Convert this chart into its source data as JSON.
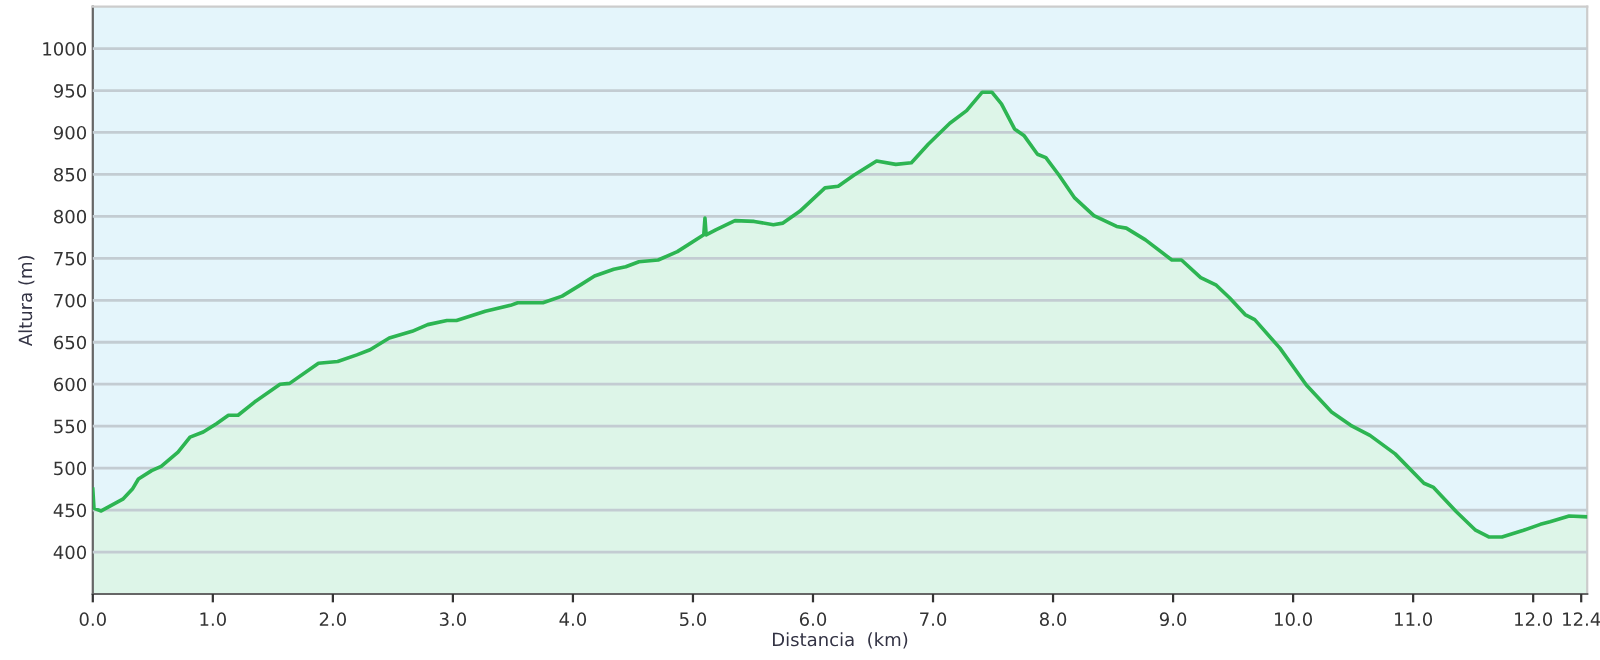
{
  "chart_data": {
    "type": "area",
    "xlabel": "Distancia  (km)",
    "ylabel": "Altura (m)",
    "x": [
      0,
      0.01,
      0.07,
      0.25,
      0.33,
      0.38,
      0.49,
      0.57,
      0.71,
      0.81,
      0.92,
      1.03,
      1.13,
      1.21,
      1.35,
      1.56,
      1.64,
      1.88,
      2.04,
      2.2,
      2.31,
      2.47,
      2.66,
      2.79,
      2.95,
      3.03,
      3.27,
      3.48,
      3.54,
      3.75,
      3.91,
      4.07,
      4.18,
      4.34,
      4.44,
      4.55,
      4.71,
      4.87,
      5.09,
      5.1,
      5.11,
      5.19,
      5.35,
      5.51,
      5.67,
      5.75,
      5.89,
      6.1,
      6.21,
      6.34,
      6.53,
      6.69,
      6.82,
      6.96,
      7.14,
      7.28,
      7.41,
      7.49,
      7.57,
      7.68,
      7.76,
      7.87,
      7.94,
      8.05,
      8.18,
      8.34,
      8.53,
      8.61,
      8.77,
      8.99,
      9.07,
      9.23,
      9.36,
      9.47,
      9.6,
      9.68,
      9.89,
      10.11,
      10.32,
      10.48,
      10.64,
      10.85,
      11.09,
      11.17,
      11.36,
      11.52,
      11.63,
      11.74,
      11.92,
      12.06,
      12.14,
      12.3,
      12.45
    ],
    "series": [
      {
        "color": "#2db552",
        "values": [
          475,
          452,
          449,
          463,
          475,
          487,
          497,
          502,
          519,
          537,
          543,
          553,
          563,
          563,
          579,
          600,
          601,
          625,
          627,
          635,
          641,
          655,
          663,
          671,
          676,
          676,
          687,
          694,
          697,
          697,
          705,
          719,
          729,
          737,
          740,
          746,
          748,
          758,
          778,
          798,
          778,
          784,
          795,
          794,
          790,
          792,
          806,
          834,
          836,
          849,
          866,
          862,
          864,
          886,
          911,
          926,
          948,
          948,
          934,
          904,
          896,
          874,
          870,
          849,
          822,
          801,
          788,
          786,
          772,
          748,
          748,
          727,
          718,
          703,
          683,
          677,
          643,
          599,
          567,
          551,
          539,
          517,
          482,
          477,
          448,
          426,
          418,
          418,
          426,
          433,
          436,
          443,
          442
        ]
      }
    ],
    "xlim": [
      0,
      12.45
    ],
    "ylim": [
      350,
      1050
    ],
    "xticks": [
      {
        "value": 0,
        "label": "0.0"
      },
      {
        "value": 1,
        "label": "1.0"
      },
      {
        "value": 2,
        "label": "2.0"
      },
      {
        "value": 3,
        "label": "3.0"
      },
      {
        "value": 4,
        "label": "4.0"
      },
      {
        "value": 5,
        "label": "5.0"
      },
      {
        "value": 6,
        "label": "6.0"
      },
      {
        "value": 7,
        "label": "7.0"
      },
      {
        "value": 8,
        "label": "8.0"
      },
      {
        "value": 9,
        "label": "9.0"
      },
      {
        "value": 10,
        "label": "10.0"
      },
      {
        "value": 11,
        "label": "11.0"
      },
      {
        "value": 12,
        "label": "12.0"
      },
      {
        "value": 12.4,
        "label": "12.4"
      }
    ],
    "yticks": [
      400,
      450,
      500,
      550,
      600,
      650,
      700,
      750,
      800,
      850,
      900,
      950,
      1000
    ],
    "grid": "y",
    "legend": false
  }
}
